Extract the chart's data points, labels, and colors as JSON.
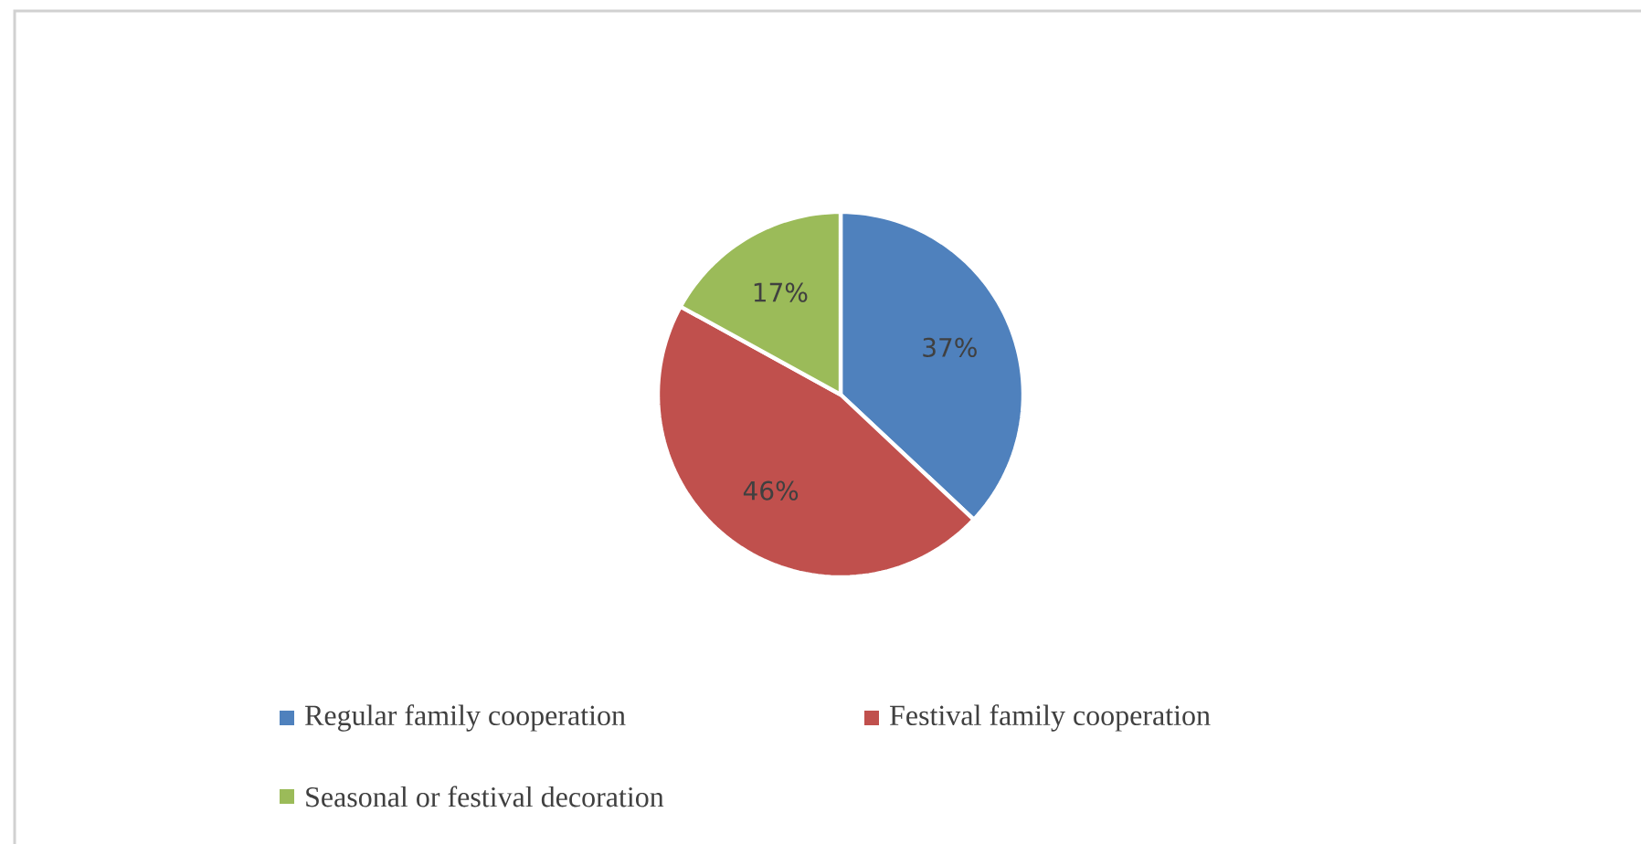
{
  "chart_data": {
    "type": "pie",
    "categories": [
      "Regular family cooperation",
      "Festival family cooperation",
      "Seasonal or festival decoration"
    ],
    "values": [
      37,
      46,
      17
    ],
    "colors": [
      "#4f81bd",
      "#c0504d",
      "#9bbb59"
    ],
    "value_labels": [
      "37%",
      "46%",
      "17%"
    ],
    "legend": "bottom"
  }
}
